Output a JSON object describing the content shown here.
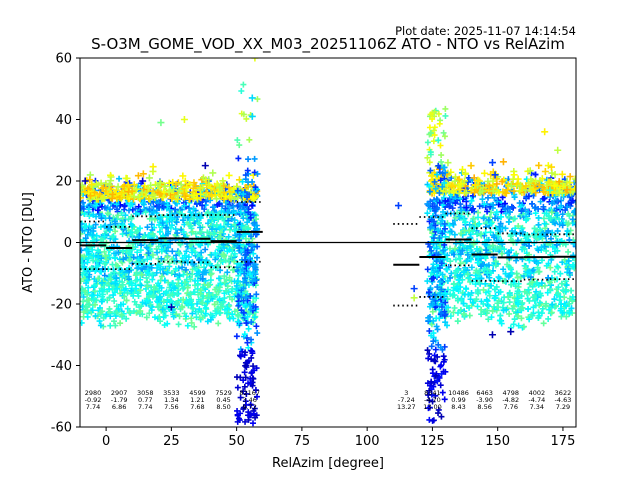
{
  "chart_data": {
    "type": "scatter",
    "title": "S-O3M_GOME_VOD_XX_M03_20251106Z ATO - NTO vs RelAzim",
    "plot_date": "Plot date: 2025-11-07 14:14:54",
    "xlabel": "RelAzim [degree]",
    "ylabel": "ATO - NTO [DU]",
    "xlim": [
      -10,
      180
    ],
    "ylim": [
      -60,
      60
    ],
    "xticks": [
      0,
      25,
      50,
      75,
      100,
      125,
      150,
      175
    ],
    "yticks": [
      -60,
      -40,
      -20,
      0,
      20,
      40,
      60
    ],
    "zero_line": 0,
    "marker": "+",
    "colormap": [
      "#00008f",
      "#0000ff",
      "#0080ff",
      "#00ffff",
      "#80ff80",
      "#ffff00",
      "#ff8000"
    ],
    "bins": [
      {
        "x_start": -10,
        "x_end": 0,
        "mean": -0.92,
        "std": 7.74,
        "count": "2980",
        "mean_label": "-0.92",
        "std_label": "7.74"
      },
      {
        "x_start": 0,
        "x_end": 10,
        "mean": -1.79,
        "std": 6.86,
        "count": "2907",
        "mean_label": "-1.79",
        "std_label": "6.86"
      },
      {
        "x_start": 10,
        "x_end": 20,
        "mean": 0.77,
        "std": 7.74,
        "count": "3058",
        "mean_label": "0.77",
        "std_label": "7.74"
      },
      {
        "x_start": 20,
        "x_end": 30,
        "mean": 1.34,
        "std": 7.56,
        "count": "3533",
        "mean_label": "1.34",
        "std_label": "7.56"
      },
      {
        "x_start": 30,
        "x_end": 40,
        "mean": 1.21,
        "std": 7.68,
        "count": "4599",
        "mean_label": "1.21",
        "std_label": "7.68"
      },
      {
        "x_start": 40,
        "x_end": 50,
        "mean": 0.45,
        "std": 8.5,
        "count": "7529",
        "mean_label": "0.45",
        "std_label": "8.50"
      },
      {
        "x_start": 50,
        "x_end": 60,
        "mean": 3.46,
        "std": 9.72,
        "count": "82167",
        "mean_label": "3.46",
        "std_label": "9.72"
      },
      {
        "x_start": 110,
        "x_end": 120,
        "mean": -7.24,
        "std": 13.27,
        "count": "3",
        "mean_label": "-7.24",
        "std_label": "13.27"
      },
      {
        "x_start": 120,
        "x_end": 130,
        "mean": -4.7,
        "std": 13.0,
        "count": "8341",
        "mean_label": "-4.70",
        "std_label": "13.00"
      },
      {
        "x_start": 130,
        "x_end": 140,
        "mean": 0.99,
        "std": 8.43,
        "count": "10486",
        "mean_label": "0.99",
        "std_label": "8.43"
      },
      {
        "x_start": 140,
        "x_end": 150,
        "mean": -3.9,
        "std": 8.56,
        "count": "6463",
        "mean_label": "-3.90",
        "std_label": "8.56"
      },
      {
        "x_start": 150,
        "x_end": 160,
        "mean": -4.82,
        "std": 7.76,
        "count": "4798",
        "mean_label": "-4.82",
        "std_label": "7.76"
      },
      {
        "x_start": 160,
        "x_end": 170,
        "mean": -4.74,
        "std": 7.34,
        "count": "4002",
        "mean_label": "-4.74",
        "std_label": "7.34"
      },
      {
        "x_start": 170,
        "x_end": 180,
        "mean": -4.63,
        "std": 7.29,
        "count": "3622",
        "mean_label": "-4.63",
        "std_label": "7.29"
      }
    ],
    "scatter_segments": [
      {
        "x_start": -10,
        "x_end": 58,
        "core_low": -25,
        "core_high": 18
      },
      {
        "x_start": 124,
        "x_end": 180,
        "core_low": -25,
        "core_high": 20
      }
    ]
  }
}
